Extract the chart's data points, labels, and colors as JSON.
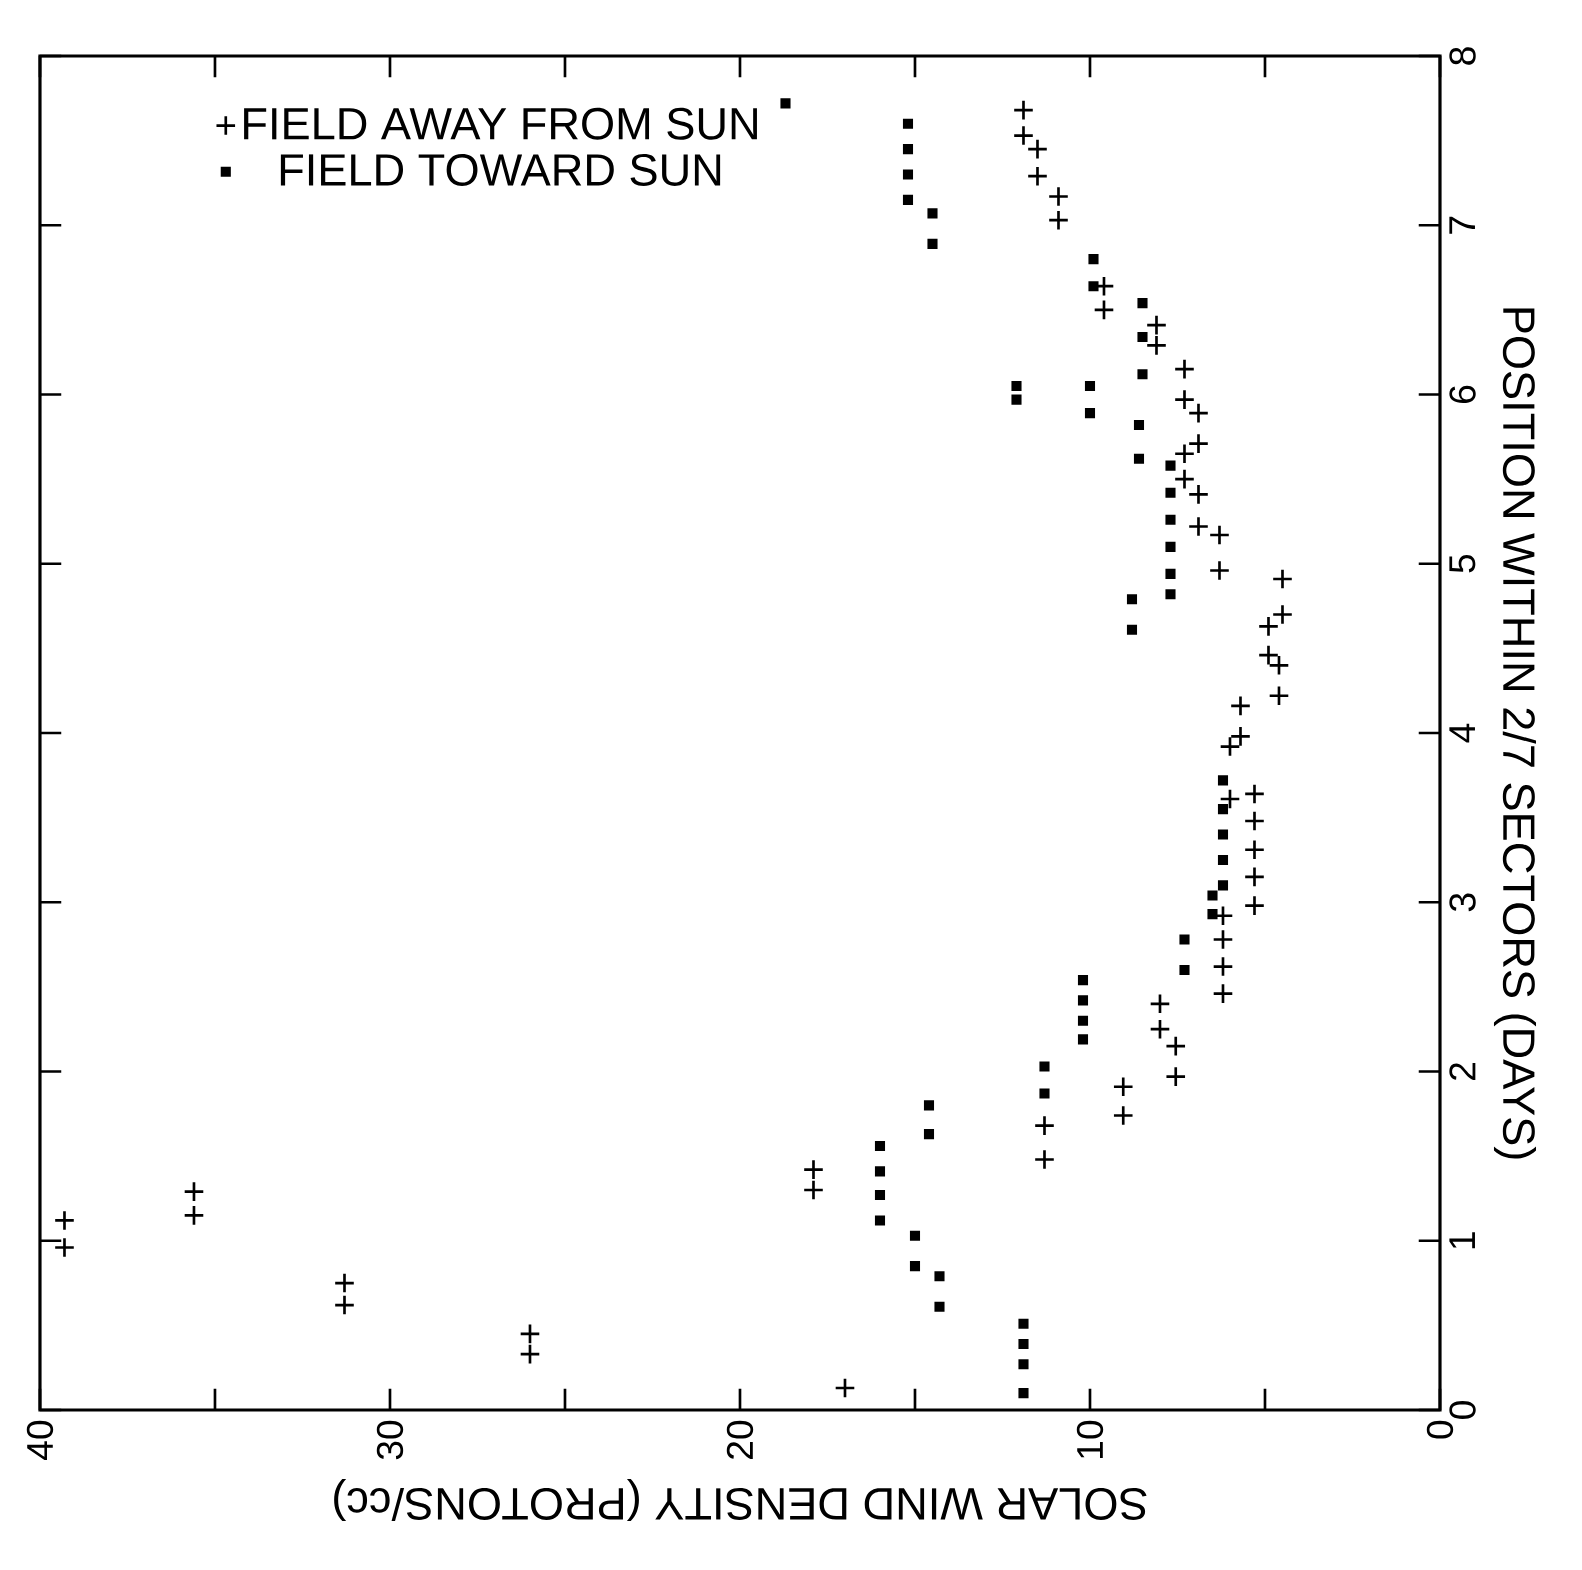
{
  "chart_data": {
    "type": "scatter",
    "xlabel": "SOLAR WIND DENSITY (PROTONS/cc)",
    "ylabel": "POSITION WITHIN 2/7 SECTORS (DAYS)",
    "xlim": [
      40,
      0
    ],
    "ylim": [
      0,
      8
    ],
    "xticks": [
      40,
      {
        "value": 35,
        "label": null
      },
      30,
      {
        "value": 25,
        "label": null
      },
      20,
      {
        "value": 15,
        "label": null
      },
      10,
      {
        "value": 5,
        "label": null
      },
      0
    ],
    "yticks": [
      0,
      1,
      2,
      3,
      4,
      5,
      6,
      7,
      8
    ],
    "legend": "top left",
    "grid": false,
    "series": [
      {
        "name": "FIELD AWAY FROM SUN",
        "color": "#000000",
        "marker": "cross",
        "x": [
          39.3,
          39.3,
          35.6,
          35.6,
          31.3,
          31.3,
          26.0,
          26.0,
          17.0,
          17.9,
          17.9,
          11.3,
          11.3,
          9.05,
          9.05,
          8.0,
          8.0,
          7.55,
          7.55,
          6.2,
          6.2,
          6.2,
          6.2,
          5.3,
          5.3,
          5.3,
          5.3,
          5.3,
          11.9,
          11.9,
          11.5,
          11.5,
          10.9,
          10.9,
          9.6,
          9.6,
          8.1,
          8.1,
          7.3,
          7.3,
          6.9,
          6.9,
          7.3,
          7.3,
          6.9,
          6.9,
          6.3,
          6.3,
          4.5,
          4.5,
          4.9,
          4.9,
          4.6,
          4.6,
          5.7,
          5.7,
          6.0,
          6.0
        ],
        "values": [
          1.12,
          0.96,
          1.29,
          1.15,
          0.75,
          0.62,
          0.45,
          0.33,
          0.13,
          1.42,
          1.3,
          1.68,
          1.48,
          1.91,
          1.74,
          2.4,
          2.25,
          2.15,
          1.97,
          2.92,
          2.78,
          2.62,
          2.46,
          3.64,
          3.48,
          3.31,
          3.15,
          2.98,
          7.68,
          7.53,
          7.45,
          7.29,
          7.17,
          7.03,
          6.64,
          6.5,
          6.41,
          6.29,
          6.15,
          5.97,
          5.89,
          5.71,
          5.65,
          5.5,
          5.41,
          5.22,
          5.17,
          4.96,
          4.91,
          4.7,
          4.63,
          4.46,
          4.4,
          4.22,
          4.16,
          3.98,
          3.92,
          3.61
        ]
      },
      {
        "name": "FIELD TOWARD SUN",
        "color": "#000000",
        "marker": "square",
        "x": [
          16.0,
          16.0,
          16.0,
          16.0,
          15.0,
          15.0,
          14.6,
          14.6,
          14.3,
          14.3,
          11.9,
          11.9,
          11.9,
          11.9,
          11.3,
          11.3,
          10.2,
          10.2,
          10.2,
          10.2,
          7.3,
          7.3,
          6.5,
          6.5,
          6.2,
          6.2,
          6.2,
          6.2,
          6.2,
          15.2,
          15.2,
          15.2,
          15.2,
          14.5,
          14.5,
          18.7,
          9.9,
          9.9,
          8.5,
          8.5,
          8.5,
          7.7,
          7.7,
          7.7,
          7.7,
          7.7,
          7.7,
          10.0,
          10.0,
          8.6,
          8.6,
          8.8,
          8.8,
          12.1,
          12.1
        ],
        "values": [
          1.56,
          1.41,
          1.27,
          1.12,
          1.03,
          0.85,
          1.8,
          1.63,
          0.79,
          0.61,
          0.51,
          0.39,
          0.27,
          0.1,
          2.03,
          1.87,
          2.54,
          2.42,
          2.3,
          2.19,
          2.78,
          2.6,
          3.04,
          2.93,
          3.72,
          3.55,
          3.4,
          3.25,
          3.1,
          7.6,
          7.45,
          7.3,
          7.15,
          7.07,
          6.89,
          7.72,
          6.8,
          6.64,
          6.54,
          6.34,
          6.12,
          5.58,
          5.42,
          5.26,
          5.1,
          4.94,
          4.82,
          6.05,
          5.89,
          5.82,
          5.62,
          4.79,
          4.61,
          6.05,
          5.97
        ]
      }
    ]
  }
}
